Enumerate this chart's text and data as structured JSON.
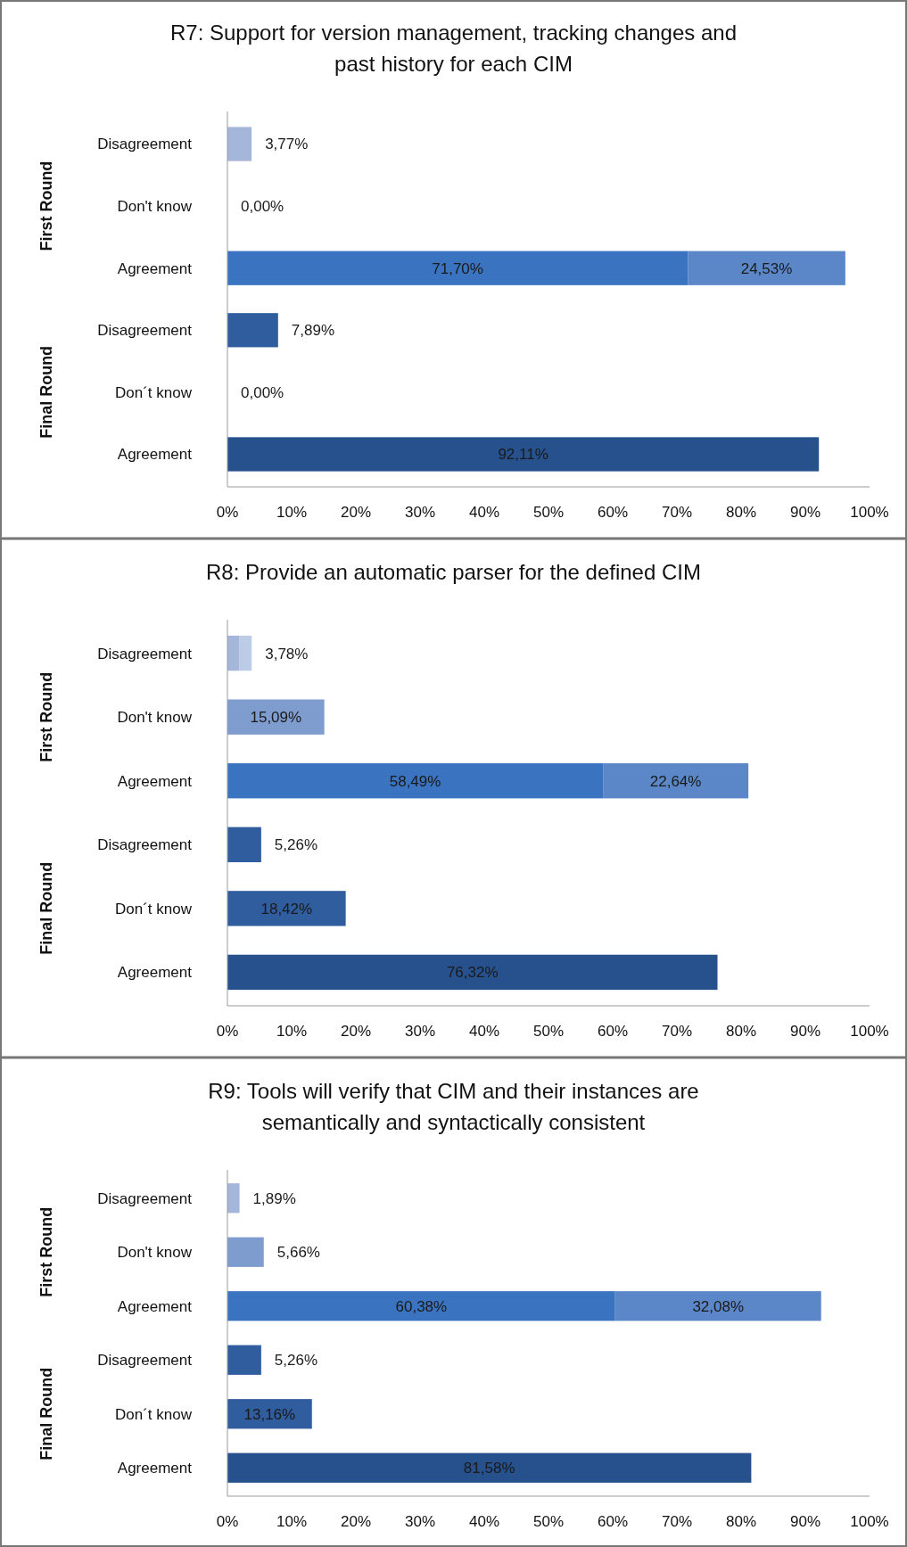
{
  "chart_data": [
    {
      "type": "bar",
      "title": "R7: Support for version management, tracking changes and past history for each CIM",
      "orientation": "horizontal",
      "stacked": true,
      "grid": false,
      "categories": [
        "Disagreement",
        "Don't know",
        "Agreement",
        "Disagreement",
        "Don´t know",
        "Agreement"
      ],
      "series": [
        {
          "values": [
            3.77,
            0,
            71.7,
            7.89,
            0,
            92.11
          ],
          "colors": [
            "#a4b7da",
            "#7f9ccf",
            "#3a74c0",
            "#2f5d9e",
            "#2f5d9e",
            "#27518c"
          ],
          "value_labels": [
            "3,77%",
            "0,00%",
            "71,70%",
            "7,89%",
            "0,00%",
            "92,11%"
          ]
        },
        {
          "values": [
            null,
            null,
            24.53,
            null,
            null,
            null
          ],
          "colors": [
            null,
            null,
            "#5b87c8",
            null,
            null,
            null
          ],
          "value_labels": [
            null,
            null,
            "24,53%",
            null,
            null,
            null
          ]
        }
      ],
      "xlim": [
        0,
        100
      ],
      "xticks": [
        {
          "value": 0,
          "label": "0%"
        },
        {
          "value": 10,
          "label": "10%"
        },
        {
          "value": 20,
          "label": "20%"
        },
        {
          "value": 30,
          "label": "30%"
        },
        {
          "value": 40,
          "label": "40%"
        },
        {
          "value": 50,
          "label": "50%"
        },
        {
          "value": 60,
          "label": "60%"
        },
        {
          "value": 70,
          "label": "70%"
        },
        {
          "value": 80,
          "label": "80%"
        },
        {
          "value": 90,
          "label": "90%"
        },
        {
          "value": 100,
          "label": "100%"
        }
      ],
      "annotations": [
        "First Round",
        "Final Round"
      ]
    },
    {
      "type": "bar",
      "title": "R8: Provide an automatic parser for the defined CIM",
      "orientation": "horizontal",
      "stacked": true,
      "grid": false,
      "categories": [
        "Disagreement",
        "Don't know",
        "Agreement",
        "Disagreement",
        "Don´t know",
        "Agreement"
      ],
      "series": [
        {
          "values": [
            1.89,
            15.09,
            58.49,
            5.26,
            18.42,
            76.32
          ],
          "colors": [
            "#a4b7da",
            "#7f9ccf",
            "#3a74c0",
            "#2f5d9e",
            "#2f5d9e",
            "#27518c"
          ],
          "value_labels": [
            null,
            "15,09%",
            "58,49%",
            "5,26%",
            "18,42%",
            "76,32%"
          ]
        },
        {
          "values": [
            1.89,
            null,
            22.64,
            null,
            null,
            null
          ],
          "colors": [
            "#bccbe6",
            null,
            "#5b87c8",
            null,
            null,
            null
          ],
          "value_labels": [
            null,
            null,
            "22,64%",
            null,
            null,
            null
          ]
        }
      ],
      "totals": [
        "3,78%",
        null,
        null,
        null,
        null,
        null
      ],
      "xlim": [
        0,
        100
      ],
      "xticks": [
        {
          "value": 0,
          "label": "0%"
        },
        {
          "value": 10,
          "label": "10%"
        },
        {
          "value": 20,
          "label": "20%"
        },
        {
          "value": 30,
          "label": "30%"
        },
        {
          "value": 40,
          "label": "40%"
        },
        {
          "value": 50,
          "label": "50%"
        },
        {
          "value": 60,
          "label": "60%"
        },
        {
          "value": 70,
          "label": "70%"
        },
        {
          "value": 80,
          "label": "80%"
        },
        {
          "value": 90,
          "label": "90%"
        },
        {
          "value": 100,
          "label": "100%"
        }
      ],
      "annotations": [
        "First Round",
        "Final Round"
      ]
    },
    {
      "type": "bar",
      "title": "R9: Tools will verify that CIM and their instances are semantically and syntactically consistent",
      "orientation": "horizontal",
      "stacked": true,
      "grid": false,
      "categories": [
        "Disagreement",
        "Don't know",
        "Agreement",
        "Disagreement",
        "Don´t know",
        "Agreement"
      ],
      "series": [
        {
          "values": [
            1.89,
            5.66,
            60.38,
            5.26,
            13.16,
            81.58
          ],
          "colors": [
            "#a4b7da",
            "#7f9ccf",
            "#3a74c0",
            "#2f5d9e",
            "#2f5d9e",
            "#27518c"
          ],
          "value_labels": [
            "1,89%",
            "5,66%",
            "60,38%",
            "5,26%",
            "13,16%",
            "81,58%"
          ]
        },
        {
          "values": [
            null,
            null,
            32.08,
            null,
            null,
            null
          ],
          "colors": [
            null,
            null,
            "#5b87c8",
            null,
            null,
            null
          ],
          "value_labels": [
            null,
            null,
            "32,08%",
            null,
            null,
            null
          ]
        }
      ],
      "xlim": [
        0,
        100
      ],
      "xticks": [
        {
          "value": 0,
          "label": "0%"
        },
        {
          "value": 10,
          "label": "10%"
        },
        {
          "value": 20,
          "label": "20%"
        },
        {
          "value": 30,
          "label": "30%"
        },
        {
          "value": 40,
          "label": "40%"
        },
        {
          "value": 50,
          "label": "50%"
        },
        {
          "value": 60,
          "label": "60%"
        },
        {
          "value": 70,
          "label": "70%"
        },
        {
          "value": 80,
          "label": "80%"
        },
        {
          "value": 90,
          "label": "90%"
        },
        {
          "value": 100,
          "label": "100%"
        }
      ],
      "annotations": [
        "First Round",
        "Final Round"
      ]
    }
  ]
}
